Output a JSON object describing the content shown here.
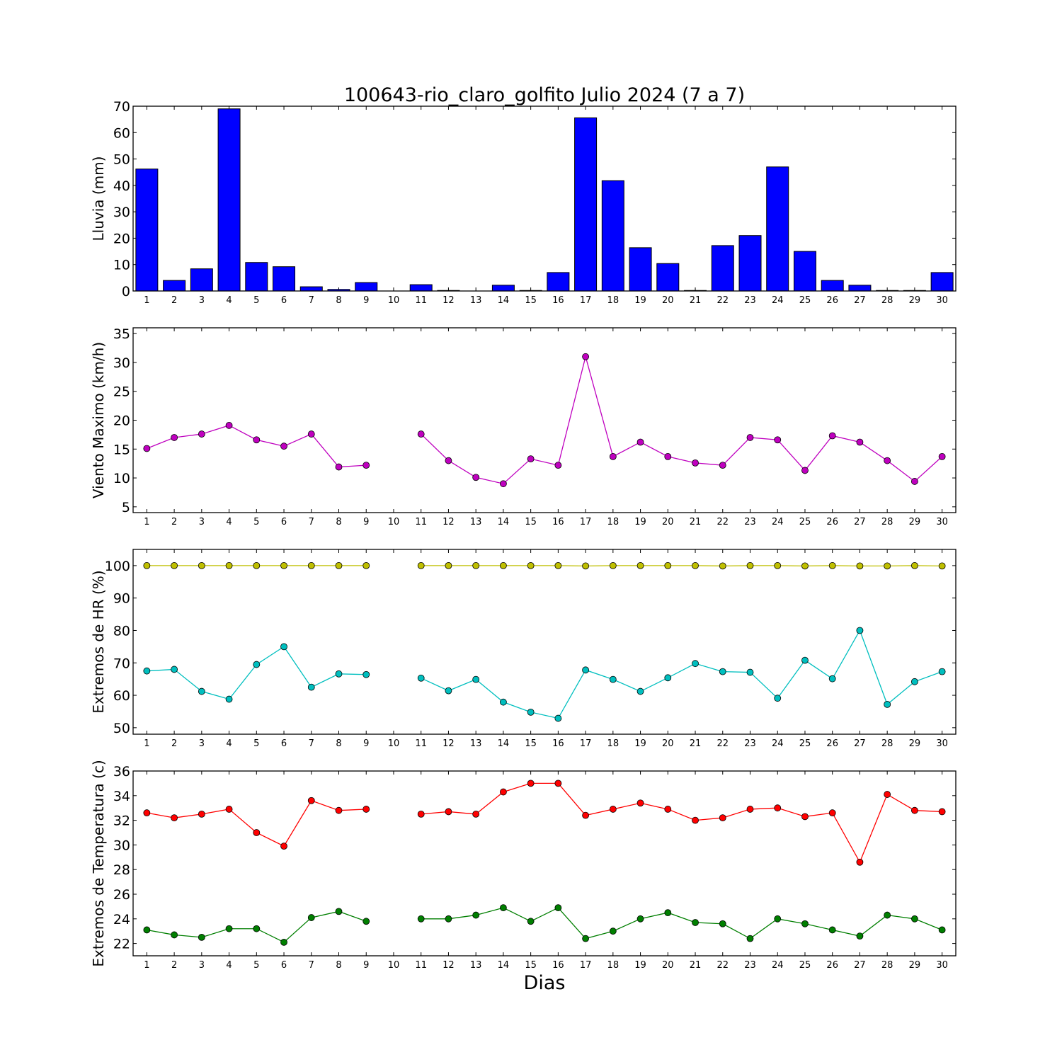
{
  "title": "100643-rio_claro_golfito Julio 2024  (7 a 7)",
  "xlabel": "Dias",
  "chart_data": [
    {
      "type": "bar",
      "ylabel": "Lluvia (mm)",
      "ylim": [
        0,
        70
      ],
      "yticks": [
        0,
        10,
        20,
        30,
        40,
        50,
        60,
        70
      ],
      "categories": [
        1,
        2,
        3,
        4,
        5,
        6,
        7,
        8,
        9,
        10,
        11,
        12,
        13,
        14,
        15,
        16,
        17,
        18,
        19,
        20,
        21,
        22,
        23,
        24,
        25,
        26,
        27,
        28,
        29,
        30
      ],
      "series": [
        {
          "color": "#0000ff",
          "values": [
            46.2,
            4.0,
            8.4,
            69.0,
            10.8,
            9.2,
            1.6,
            0.6,
            3.2,
            0,
            2.4,
            0.2,
            0,
            2.2,
            0.2,
            7.0,
            65.6,
            41.8,
            16.4,
            10.4,
            0.2,
            17.2,
            21.0,
            47.0,
            15.0,
            4.0,
            2.2,
            0.2,
            0.2,
            7.0
          ]
        }
      ]
    },
    {
      "type": "line",
      "ylabel": "Viento Maximo (km/h)",
      "ylim": [
        4,
        36
      ],
      "yticks": [
        5,
        10,
        15,
        20,
        25,
        30,
        35
      ],
      "x": [
        1,
        2,
        3,
        4,
        5,
        6,
        7,
        8,
        9,
        10,
        11,
        12,
        13,
        14,
        15,
        16,
        17,
        18,
        19,
        20,
        21,
        22,
        23,
        24,
        25,
        26,
        27,
        28,
        29,
        30
      ],
      "series": [
        {
          "color": "#bf00bf",
          "values": [
            15.1,
            17.0,
            17.6,
            19.1,
            16.6,
            15.5,
            17.6,
            11.9,
            12.2,
            null,
            17.6,
            13.0,
            10.1,
            9.0,
            13.3,
            12.2,
            31.0,
            13.7,
            16.2,
            13.7,
            12.6,
            12.2,
            17.0,
            16.6,
            11.3,
            17.3,
            16.2,
            13.0,
            9.4,
            13.7
          ]
        }
      ]
    },
    {
      "type": "line",
      "ylabel": "Extremos de HR (%)",
      "ylim": [
        48,
        105
      ],
      "yticks": [
        50,
        60,
        70,
        80,
        90,
        100
      ],
      "x": [
        1,
        2,
        3,
        4,
        5,
        6,
        7,
        8,
        9,
        10,
        11,
        12,
        13,
        14,
        15,
        16,
        17,
        18,
        19,
        20,
        21,
        22,
        23,
        24,
        25,
        26,
        27,
        28,
        29,
        30
      ],
      "series": [
        {
          "color": "#bfbf00",
          "values": [
            100,
            100,
            100,
            100,
            100,
            100,
            100,
            100,
            100,
            null,
            100,
            100,
            100,
            100,
            100,
            100,
            99.9,
            100,
            100,
            100,
            100,
            99.9,
            100,
            100,
            99.9,
            100,
            99.9,
            99.9,
            100,
            99.9
          ]
        },
        {
          "color": "#00bfbf",
          "values": [
            67.5,
            68.0,
            61.2,
            58.8,
            69.5,
            75.0,
            62.5,
            66.6,
            66.4,
            null,
            65.3,
            61.4,
            64.9,
            57.9,
            54.8,
            52.9,
            67.8,
            64.9,
            61.2,
            65.4,
            69.8,
            67.3,
            67.1,
            59.1,
            70.8,
            65.1,
            80.0,
            57.2,
            64.2,
            67.3
          ]
        }
      ]
    },
    {
      "type": "line",
      "ylabel": "Extremos de Temperatura (c)",
      "ylim": [
        21,
        36
      ],
      "yticks": [
        22,
        24,
        26,
        28,
        30,
        32,
        34,
        36
      ],
      "x": [
        1,
        2,
        3,
        4,
        5,
        6,
        7,
        8,
        9,
        10,
        11,
        12,
        13,
        14,
        15,
        16,
        17,
        18,
        19,
        20,
        21,
        22,
        23,
        24,
        25,
        26,
        27,
        28,
        29,
        30
      ],
      "series": [
        {
          "color": "#ff0000",
          "values": [
            32.6,
            32.2,
            32.5,
            32.9,
            31.0,
            29.9,
            33.6,
            32.8,
            32.9,
            null,
            32.5,
            32.7,
            32.5,
            34.3,
            35.0,
            35.0,
            32.4,
            32.9,
            33.4,
            32.9,
            32.0,
            32.2,
            32.9,
            33.0,
            32.3,
            32.6,
            28.6,
            34.1,
            32.8,
            32.7
          ]
        },
        {
          "color": "#007f00",
          "values": [
            23.1,
            22.7,
            22.5,
            23.2,
            23.2,
            22.1,
            24.1,
            24.6,
            23.8,
            null,
            24.0,
            24.0,
            24.3,
            24.9,
            23.8,
            24.9,
            22.4,
            23.0,
            24.0,
            24.5,
            23.7,
            23.6,
            22.4,
            24.0,
            23.6,
            23.1,
            22.6,
            24.3,
            24.0,
            23.1
          ]
        }
      ]
    }
  ]
}
